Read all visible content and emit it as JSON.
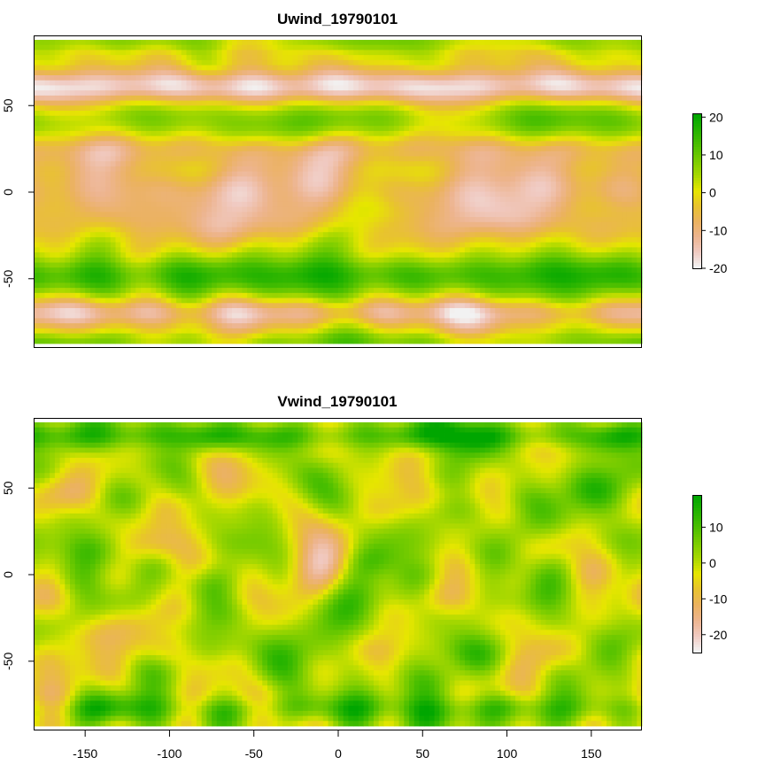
{
  "chart_data": [
    {
      "type": "heatmap",
      "title": "Uwind_19790101",
      "xlabel": "",
      "ylabel": "",
      "xlim": [
        -180,
        180
      ],
      "ylim": [
        -90,
        90
      ],
      "y_ticks": [
        50,
        0,
        -50
      ],
      "y_tick_labels": [
        "50",
        "0",
        "-50"
      ],
      "x_ticks": [],
      "x_tick_labels": [],
      "colorbar": {
        "range": [
          -20,
          21
        ],
        "ticks": [
          20,
          10,
          0,
          -10,
          -20
        ],
        "tick_labels": [
          "20",
          "10",
          "0",
          "-10",
          "-20"
        ]
      },
      "field": {
        "seed": 11,
        "bands": [
          {
            "lat": 88,
            "width": 4,
            "amp": 5
          },
          {
            "lat": 62,
            "width": 10,
            "amp": -18
          },
          {
            "lat": 42,
            "width": 14,
            "amp": 8
          },
          {
            "lat": 25,
            "width": 10,
            "amp": -8
          },
          {
            "lat": 0,
            "width": 18,
            "amp": -10
          },
          {
            "lat": -20,
            "width": 10,
            "amp": -4
          },
          {
            "lat": -50,
            "width": 12,
            "amp": 15
          },
          {
            "lat": -72,
            "width": 8,
            "amp": -12
          },
          {
            "lat": -88,
            "width": 4,
            "amp": 6
          }
        ],
        "noise": 8,
        "zmin": -20,
        "zmax": 21
      }
    },
    {
      "type": "heatmap",
      "title": "Vwind_19790101",
      "xlabel": "",
      "ylabel": "",
      "xlim": [
        -180,
        180
      ],
      "ylim": [
        -90,
        90
      ],
      "y_ticks": [
        50,
        0,
        -50
      ],
      "y_tick_labels": [
        "50",
        "0",
        "-50"
      ],
      "x_ticks": [
        -150,
        -100,
        -50,
        0,
        50,
        100,
        150
      ],
      "x_tick_labels": [
        "-150",
        "-100",
        "-50",
        "0",
        "50",
        "100",
        "150"
      ],
      "colorbar": {
        "range": [
          -25,
          19
        ],
        "ticks": [
          10,
          0,
          -10,
          -20
        ],
        "tick_labels": [
          "10",
          "0",
          "-10",
          "-20"
        ]
      },
      "field": {
        "seed": 29,
        "bands": [
          {
            "lat": 82,
            "width": 8,
            "amp": 12
          },
          {
            "lat": -80,
            "width": 8,
            "amp": 8
          }
        ],
        "noise": 13,
        "zmin": -25,
        "zmax": 19
      }
    }
  ],
  "palette": {
    "colors": [
      "#00A600",
      "#24B300",
      "#4BBF00",
      "#79CC00",
      "#A8D800",
      "#E6E600",
      "#E8C32E",
      "#EBB25E",
      "#EDB48E",
      "#F0C9C0",
      "#F2F2F2"
    ]
  }
}
